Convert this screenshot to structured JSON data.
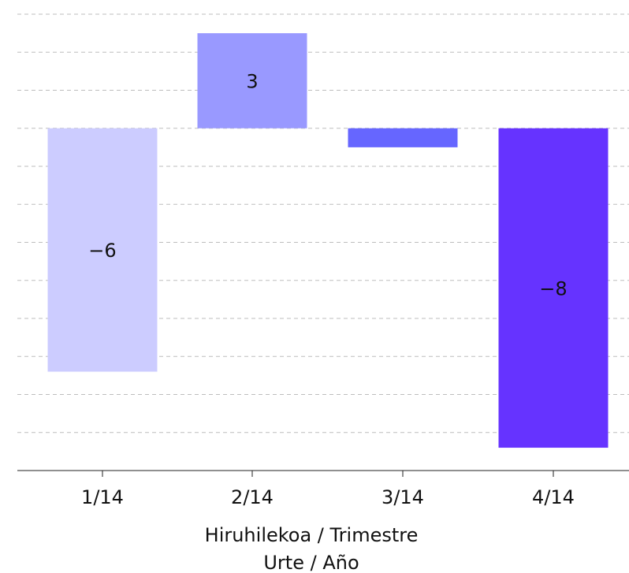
{
  "chart_data": {
    "type": "bar",
    "categories": [
      "1/14",
      "2/14",
      "3/14",
      "4/14"
    ],
    "values": [
      -6.4,
      2.5,
      -0.5,
      -8.4
    ],
    "data_labels": [
      "−6",
      "3",
      "",
      "−8"
    ],
    "xlabel_lines": [
      "Hiruhilekoa / Trimestre",
      "Urte / Año"
    ],
    "ylim": [
      -9,
      3
    ],
    "grid": true,
    "colors": [
      "#ccccff",
      "#9999ff",
      "#6666ff",
      "#6633ff"
    ]
  }
}
